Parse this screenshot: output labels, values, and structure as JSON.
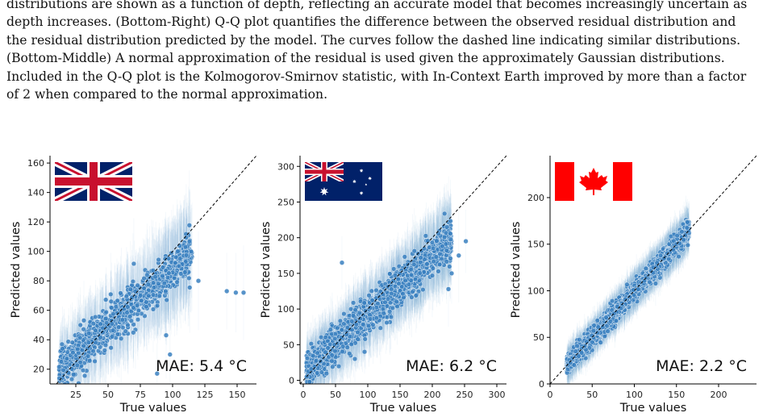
{
  "caption": [
    "distributions are shown as a function of depth, reflecting an accurate model that becomes increasingly uncertain as",
    "depth increases. (Bottom-Right) Q-Q plot quantifies the difference between the observed residual distribution and",
    "the residual distribution predicted by the model. The curves follow the dashed line indicating similar distributions.",
    "(Bottom-Middle) A normal approximation of the residual is used given the approximately Gaussian distributions.",
    "Included in the Q-Q plot is the Kolmogorov-Smirnov statistic, with In-Context Earth improved by more than a factor",
    "of 2 when compared to the normal approximation."
  ],
  "colors": {
    "point": "#3a80c0",
    "point_edge": "#ffffff",
    "errorbar": "#6aa6d8",
    "identity_line": "#000000"
  },
  "chart_data": [
    {
      "type": "scatter",
      "flag": "uk-flag",
      "xlabel": "True values",
      "ylabel": "Predicted values",
      "annotation": "MAE: 5.4 °C",
      "xticks": [
        25,
        50,
        75,
        100,
        125,
        150
      ],
      "yticks": [
        20,
        40,
        60,
        80,
        100,
        120,
        140,
        160
      ],
      "xlim": [
        5,
        165
      ],
      "ylim": [
        10,
        165
      ],
      "identity_line": true,
      "n_points": 1200,
      "x_range": [
        12,
        115
      ],
      "slope": 0.78,
      "intercept": 10,
      "noise": 7,
      "outliers": [
        [
          120,
          80
        ],
        [
          142,
          73
        ],
        [
          149,
          72
        ],
        [
          155,
          72
        ],
        [
          110,
          103
        ],
        [
          88,
          17
        ],
        [
          95,
          43
        ],
        [
          98,
          30
        ]
      ]
    },
    {
      "type": "scatter",
      "flag": "australia-flag",
      "xlabel": "True values",
      "ylabel": "Predicted values",
      "annotation": "MAE: 6.2 °C",
      "xticks": [
        0,
        50,
        100,
        150,
        200,
        250,
        300
      ],
      "yticks": [
        0,
        50,
        100,
        150,
        200,
        250,
        300
      ],
      "xlim": [
        -5,
        315
      ],
      "ylim": [
        -5,
        315
      ],
      "identity_line": true,
      "n_points": 2200,
      "x_range": [
        5,
        230
      ],
      "slope": 0.82,
      "intercept": 10,
      "noise": 12,
      "outliers": [
        [
          252,
          195
        ],
        [
          241,
          175
        ],
        [
          225,
          128
        ],
        [
          60,
          165
        ],
        [
          80,
          30
        ],
        [
          95,
          40
        ],
        [
          230,
          150
        ]
      ]
    },
    {
      "type": "scatter",
      "flag": "canada-flag",
      "xlabel": "True values",
      "ylabel": "Predicted values",
      "annotation": "MAE: 2.2 °C",
      "xticks": [
        0,
        50,
        100,
        150,
        200
      ],
      "yticks": [
        0,
        50,
        100,
        150,
        200
      ],
      "xlim": [
        0,
        245
      ],
      "ylim": [
        0,
        245
      ],
      "identity_line": true,
      "n_points": 3000,
      "x_range": [
        20,
        165
      ],
      "slope": 1.0,
      "intercept": 0,
      "noise": 5,
      "outliers": []
    }
  ]
}
